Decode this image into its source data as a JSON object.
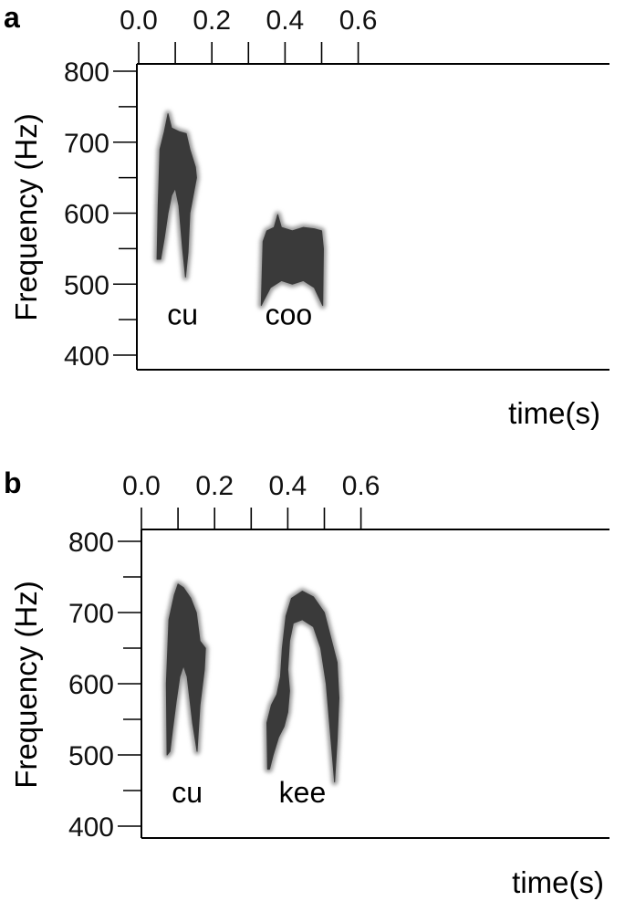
{
  "chart_data": [
    {
      "panel": "a",
      "type": "spectrogram",
      "xlabel": "time(s)",
      "ylabel": "Frequency (Hz)",
      "xlim": [
        0.0,
        0.65
      ],
      "ylim": [
        380,
        810
      ],
      "x_ticks": [
        "0.0",
        "0.2",
        "0.4",
        "0.6"
      ],
      "y_ticks": [
        "400",
        "500",
        "600",
        "700",
        "800"
      ],
      "calls": [
        {
          "label": "cu",
          "label_at": [
            0.12,
            415
          ],
          "contour": [
            [
              0.05,
              535
            ],
            [
              0.053,
              610
            ],
            [
              0.058,
              690
            ],
            [
              0.07,
              715
            ],
            [
              0.08,
              740
            ],
            [
              0.09,
              720
            ],
            [
              0.11,
              715
            ],
            [
              0.13,
              712
            ],
            [
              0.14,
              690
            ],
            [
              0.155,
              665
            ],
            [
              0.158,
              650
            ],
            [
              0.14,
              600
            ],
            [
              0.135,
              545
            ],
            [
              0.128,
              510
            ],
            [
              0.12,
              550
            ],
            [
              0.11,
              610
            ],
            [
              0.1,
              635
            ],
            [
              0.09,
              625
            ],
            [
              0.08,
              600
            ],
            [
              0.07,
              565
            ],
            [
              0.06,
              535
            ]
          ]
        },
        {
          "label": "coo",
          "label_at": [
            0.41,
            415
          ],
          "contour": [
            [
              0.335,
              470
            ],
            [
              0.34,
              560
            ],
            [
              0.35,
              575
            ],
            [
              0.37,
              580
            ],
            [
              0.38,
              598
            ],
            [
              0.39,
              580
            ],
            [
              0.42,
              575
            ],
            [
              0.45,
              580
            ],
            [
              0.48,
              578
            ],
            [
              0.5,
              575
            ],
            [
              0.505,
              550
            ],
            [
              0.503,
              470
            ],
            [
              0.48,
              495
            ],
            [
              0.45,
              505
            ],
            [
              0.42,
              500
            ],
            [
              0.39,
              505
            ],
            [
              0.36,
              495
            ],
            [
              0.34,
              475
            ]
          ]
        }
      ]
    },
    {
      "panel": "b",
      "type": "spectrogram",
      "xlabel": "time(s)",
      "ylabel": "Frequency (Hz)",
      "xlim": [
        0.0,
        0.65
      ],
      "ylim": [
        380,
        810
      ],
      "x_ticks": [
        "0.0",
        "0.2",
        "0.4",
        "0.6"
      ],
      "y_ticks": [
        "400",
        "500",
        "600",
        "700",
        "800"
      ],
      "calls": [
        {
          "label": "cu",
          "label_at": [
            0.125,
            405
          ],
          "contour": [
            [
              0.07,
              500
            ],
            [
              0.068,
              600
            ],
            [
              0.075,
              690
            ],
            [
              0.09,
              725
            ],
            [
              0.1,
              740
            ],
            [
              0.115,
              735
            ],
            [
              0.135,
              720
            ],
            [
              0.15,
              700
            ],
            [
              0.16,
              660
            ],
            [
              0.175,
              650
            ],
            [
              0.172,
              620
            ],
            [
              0.16,
              570
            ],
            [
              0.152,
              505
            ],
            [
              0.14,
              545
            ],
            [
              0.125,
              610
            ],
            [
              0.115,
              625
            ],
            [
              0.105,
              610
            ],
            [
              0.095,
              575
            ],
            [
              0.085,
              535
            ],
            [
              0.078,
              505
            ]
          ]
        },
        {
          "label": "kee",
          "label_at": [
            0.44,
            405
          ],
          "contour": [
            [
              0.345,
              480
            ],
            [
              0.343,
              545
            ],
            [
              0.355,
              570
            ],
            [
              0.37,
              585
            ],
            [
              0.38,
              610
            ],
            [
              0.385,
              650
            ],
            [
              0.395,
              695
            ],
            [
              0.41,
              720
            ],
            [
              0.44,
              730
            ],
            [
              0.47,
              722
            ],
            [
              0.5,
              700
            ],
            [
              0.52,
              660
            ],
            [
              0.535,
              630
            ],
            [
              0.54,
              580
            ],
            [
              0.535,
              520
            ],
            [
              0.528,
              462
            ],
            [
              0.515,
              540
            ],
            [
              0.505,
              600
            ],
            [
              0.49,
              650
            ],
            [
              0.47,
              680
            ],
            [
              0.44,
              690
            ],
            [
              0.415,
              685
            ],
            [
              0.405,
              660
            ],
            [
              0.4,
              620
            ],
            [
              0.405,
              590
            ],
            [
              0.4,
              560
            ],
            [
              0.39,
              540
            ],
            [
              0.375,
              525
            ],
            [
              0.36,
              500
            ],
            [
              0.35,
              480
            ]
          ]
        }
      ]
    }
  ]
}
